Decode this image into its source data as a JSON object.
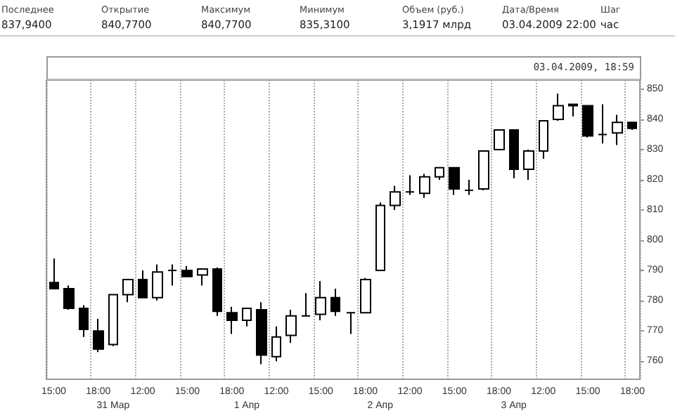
{
  "chart_data": {
    "type": "candlestick",
    "subtitle": "03.04.2009, 18:59",
    "annotations": [
      "Последнее",
      "Открытие",
      "Максимум",
      "Минимум",
      "Объем (руб.)",
      "Дата/Время",
      "Шаг",
      "837,9400",
      "840,7700",
      "840,7700",
      "835,3100",
      "3,1917 млрд",
      "03.04.2009 22:00",
      "час"
    ],
    "categories": [
      "15:00",
      null,
      null,
      "18:00",
      "31 Мар",
      null,
      "12:00",
      null,
      null,
      "15:00",
      null,
      null,
      "18:00",
      "1 Апр",
      null,
      "12:00",
      null,
      null,
      "15:00",
      null,
      null,
      "18:00",
      "2 Апр",
      null,
      "12:00",
      null,
      null,
      "15:00",
      null,
      null,
      "18:00",
      "3 Апр",
      null,
      "12:00",
      null,
      null,
      "15:00",
      null,
      null,
      "18:00"
    ],
    "ohlc": [
      [
        786,
        794,
        784,
        784
      ],
      [
        784,
        785,
        777,
        777.5
      ],
      [
        777.5,
        778.5,
        768,
        770.5
      ],
      [
        770,
        774,
        763,
        764
      ],
      [
        765.5,
        782,
        765,
        782
      ],
      [
        782,
        787,
        779.5,
        787
      ],
      [
        787,
        790,
        781,
        781
      ],
      [
        781,
        792,
        780,
        789.5
      ],
      [
        790,
        792,
        785,
        790
      ],
      [
        790,
        791.5,
        788,
        788
      ],
      [
        788.5,
        790.5,
        785,
        790.5
      ],
      [
        790.5,
        791,
        775,
        776.5
      ],
      [
        776,
        778,
        769,
        773.5
      ],
      [
        773.5,
        777.5,
        771.5,
        777.5
      ],
      [
        777,
        779.5,
        759,
        762
      ],
      [
        761.5,
        771.5,
        760,
        768
      ],
      [
        768.5,
        777,
        766,
        775
      ],
      [
        775,
        782.5,
        775,
        775
      ],
      [
        775.5,
        786.5,
        773.5,
        781
      ],
      [
        781,
        784,
        775,
        776.5
      ],
      [
        776,
        776,
        769,
        776
      ],
      [
        776,
        787.5,
        776,
        787
      ],
      [
        790,
        812.5,
        790,
        811.5
      ],
      [
        811.5,
        818,
        810,
        816
      ],
      [
        816,
        821.5,
        815,
        816
      ],
      [
        815.5,
        822,
        814,
        821
      ],
      [
        821,
        824,
        820,
        824
      ],
      [
        824,
        824,
        815,
        817
      ],
      [
        816.5,
        820,
        815,
        816.5
      ],
      [
        817,
        829.5,
        816.5,
        829.5
      ],
      [
        830,
        836.5,
        830,
        836.5
      ],
      [
        836.5,
        836.5,
        820.5,
        823.5
      ],
      [
        823.5,
        830,
        820,
        829.5
      ],
      [
        829.5,
        839.5,
        827,
        839.5
      ],
      [
        840,
        848.5,
        839.5,
        844.5
      ],
      [
        845,
        845,
        841,
        844.5
      ],
      [
        844.5,
        844.5,
        834,
        834.5
      ],
      [
        835,
        845,
        832,
        835
      ],
      [
        835.5,
        841.5,
        831.5,
        839
      ],
      [
        839,
        839,
        836.5,
        837
      ]
    ],
    "ylim": [
      754,
      853
    ],
    "yticks": [
      760,
      770,
      780,
      790,
      800,
      810,
      820,
      830,
      840,
      850
    ],
    "grid": "x"
  }
}
